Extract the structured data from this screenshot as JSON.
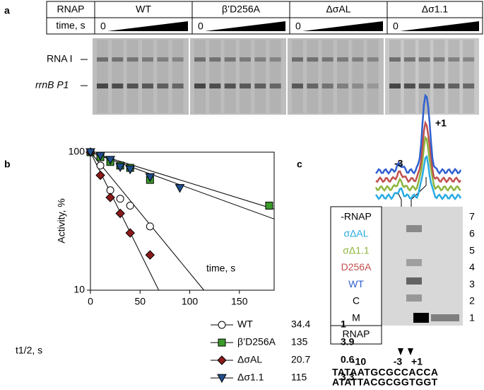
{
  "panel_a": {
    "label": "a",
    "header": [
      "RNAP",
      "WT",
      "β’D256A",
      "ΔσAL",
      "Δσ1.1"
    ],
    "time_label": "time, s",
    "zero": [
      "0",
      "0",
      "0",
      "0"
    ],
    "bands": [
      "RNA I",
      "rrnB P1"
    ]
  },
  "chart_data": {
    "type": "scatter",
    "label": "b",
    "ylabel": "Activity, %",
    "xlabel": "time, s",
    "legend_title": "t1/2, s",
    "xlim": [
      0,
      185
    ],
    "xticks": [
      0,
      50,
      100,
      150
    ],
    "ylim": [
      10,
      100
    ],
    "yticks": [
      10,
      100
    ],
    "yscale": "log",
    "series": [
      {
        "name": "WT",
        "color": "#ffffff",
        "marker": "circle",
        "x": [
          0,
          10,
          20,
          30,
          40,
          60
        ],
        "values": [
          100,
          80,
          53,
          46,
          41,
          29
        ],
        "t_half": 34.4,
        "ratio": 1
      },
      {
        "name": "β’D256A",
        "color": "#3a9a2a",
        "marker": "square",
        "x": [
          0,
          10,
          20,
          30,
          40,
          60,
          180
        ],
        "values": [
          100,
          92,
          85,
          80,
          77,
          63,
          41
        ],
        "t_half": 135,
        "ratio": 3.9
      },
      {
        "name": "ΔσAL",
        "color": "#8b1a1a",
        "marker": "diamond",
        "x": [
          0,
          10,
          20,
          30,
          40,
          60
        ],
        "values": [
          100,
          68,
          47,
          36,
          26,
          18
        ],
        "t_half": 20.7,
        "ratio": 0.6
      },
      {
        "name": "Δσ1.1",
        "color": "#1f4e8c",
        "marker": "triangle",
        "x": [
          0,
          10,
          20,
          30,
          40,
          60,
          90
        ],
        "values": [
          100,
          94,
          88,
          78,
          75,
          66,
          55
        ],
        "t_half": 115,
        "ratio": 3.3
      }
    ]
  },
  "panel_c": {
    "label": "c",
    "peaks": [
      "+1",
      "-3"
    ],
    "lanes": [
      {
        "text": "-RNAP",
        "color": "#000000"
      },
      {
        "text": "σΔAL",
        "color": "#29abe2"
      },
      {
        "text": "σΔ1.1",
        "color": "#8db53c"
      },
      {
        "text": "D256A",
        "color": "#c0504d"
      },
      {
        "text": "WT",
        "color": "#3060d0"
      },
      {
        "text": "C",
        "color": "#000000"
      },
      {
        "text": "M",
        "color": "#000000"
      }
    ],
    "lane_numbers": [
      7,
      6,
      5,
      4,
      3,
      2,
      1
    ],
    "footer": "RNAP",
    "positions": [
      "-10",
      "-3",
      "+1"
    ],
    "sequences": [
      "TATAATGCGCCACCA",
      "ATATTACGCGGTGGT"
    ]
  }
}
